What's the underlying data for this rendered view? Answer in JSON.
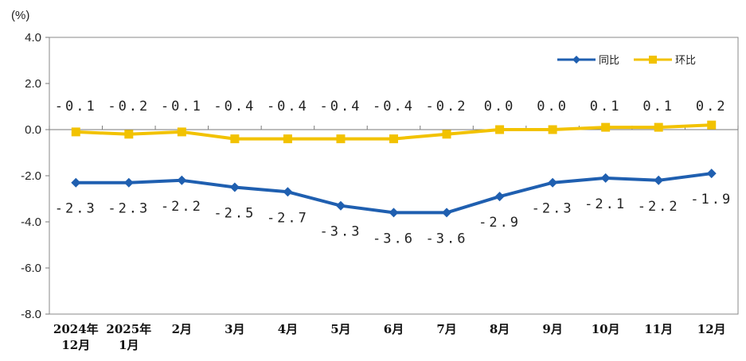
{
  "chart_data": {
    "type": "line",
    "unit_label": "(%)",
    "categories": [
      [
        "2024年",
        "12月"
      ],
      [
        "2025年",
        "1月"
      ],
      [
        "2月"
      ],
      [
        "3月"
      ],
      [
        "4月"
      ],
      [
        "5月"
      ],
      [
        "6月"
      ],
      [
        "7月"
      ],
      [
        "8月"
      ],
      [
        "9月"
      ],
      [
        "10月"
      ],
      [
        "11月"
      ],
      [
        "12月"
      ]
    ],
    "series": [
      {
        "name": "同比",
        "color": "#1f5fb0",
        "marker": "diamond",
        "values": [
          -2.3,
          -2.3,
          -2.2,
          -2.5,
          -2.7,
          -3.3,
          -3.6,
          -3.6,
          -2.9,
          -2.3,
          -2.1,
          -2.2,
          -1.9
        ],
        "labels": [
          "-2.3",
          "-2.3",
          "-2.2",
          "-2.5",
          "-2.7",
          "-3.3",
          "-3.6",
          "-3.6",
          "-2.9",
          "-2.3",
          "-2.1",
          "-2.2",
          "-1.9"
        ]
      },
      {
        "name": "环比",
        "color": "#f2c200",
        "marker": "square",
        "values": [
          -0.1,
          -0.2,
          -0.1,
          -0.4,
          -0.4,
          -0.4,
          -0.4,
          -0.2,
          0.0,
          0.0,
          0.1,
          0.1,
          0.2
        ],
        "labels": [
          "-0.1",
          "-0.2",
          "-0.1",
          "-0.4",
          "-0.4",
          "-0.4",
          "-0.4",
          "-0.2",
          "0.0",
          "0.0",
          "0.1",
          "0.1",
          "0.2"
        ]
      }
    ],
    "ylim": [
      -8.0,
      4.0
    ],
    "yticks": [
      "4.0",
      "2.0",
      "0.0",
      "-2.0",
      "-4.0",
      "-6.0",
      "-8.0"
    ],
    "grid": false,
    "legend_position": "top-right"
  }
}
